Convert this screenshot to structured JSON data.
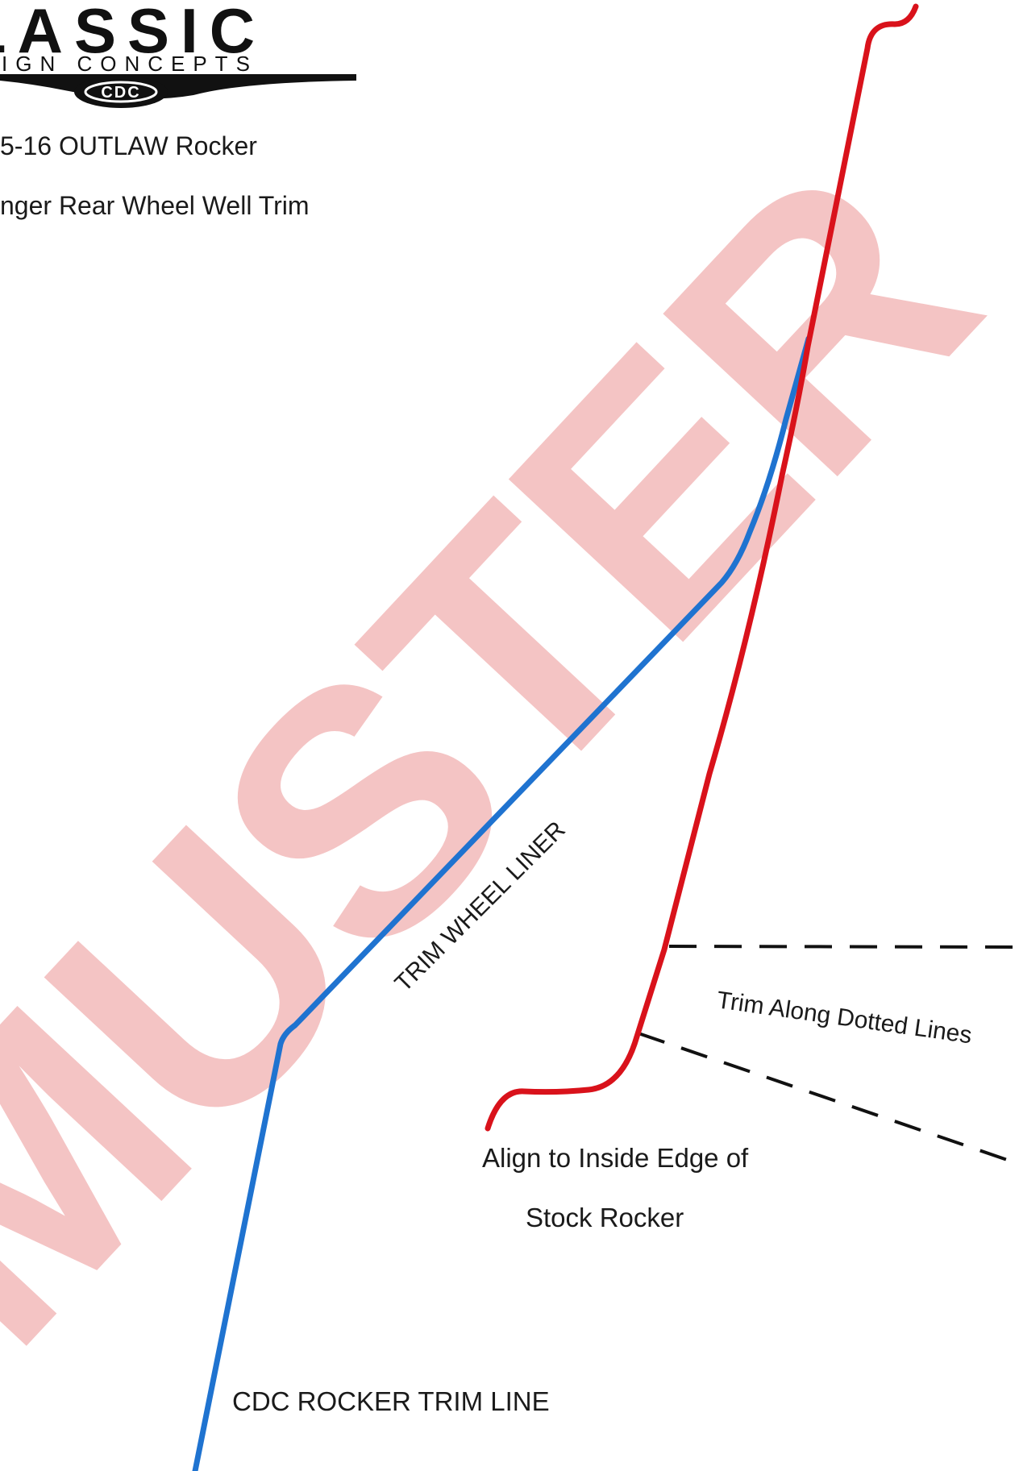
{
  "logo": {
    "line1": "LASSIC",
    "line2": "IGN CONCEPTS",
    "badge": "CDC"
  },
  "header": {
    "model_line": "5-16 OUTLAW Rocker",
    "part_line": "nger Rear Wheel Well Trim"
  },
  "watermark": {
    "text": "MUSTER",
    "color": "#f4c4c4"
  },
  "labels": {
    "trim_wheel_liner": "TRIM WHEEL LINER",
    "trim_along_dotted": "Trim Along Dotted Lines",
    "align_line1": "Align to Inside Edge of",
    "align_line2": "Stock Rocker",
    "cdc_trim_line": "CDC ROCKER TRIM LINE"
  },
  "colors": {
    "red_line": "#d9121b",
    "blue_line": "#1f73d0",
    "dashed_line": "#111111",
    "text": "#1a1a1a"
  }
}
